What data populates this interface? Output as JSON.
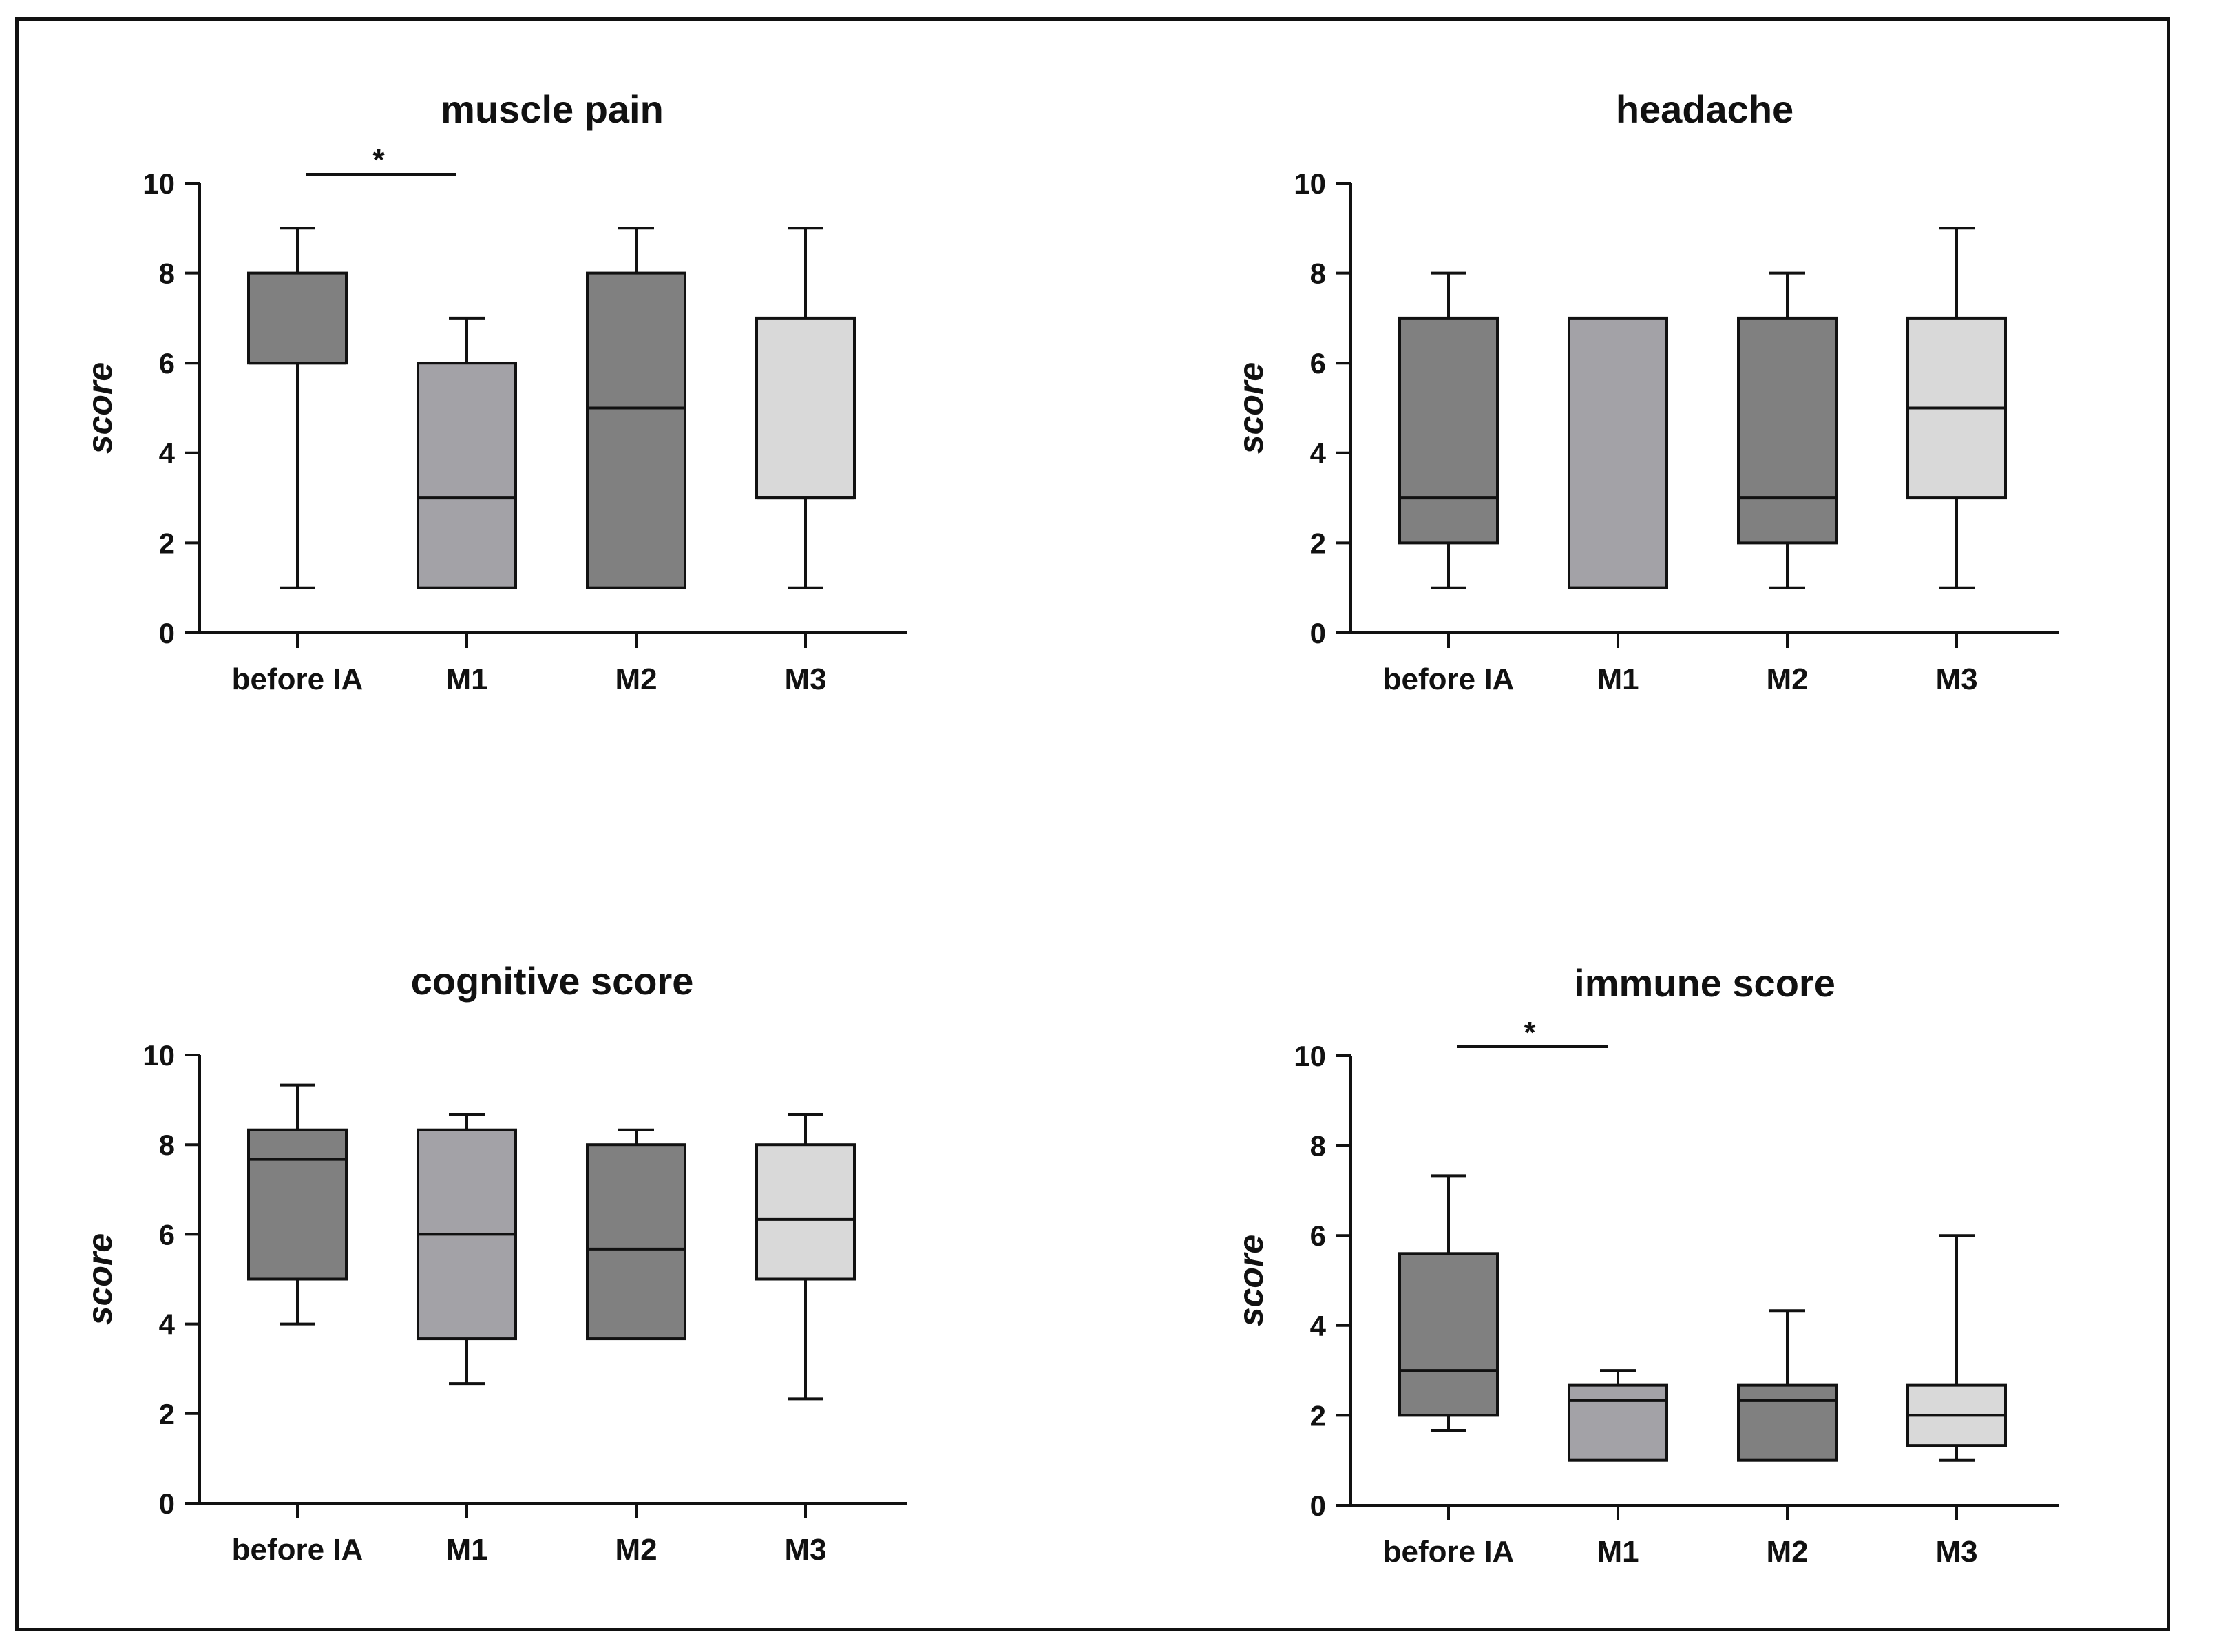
{
  "chart_data": [
    {
      "type": "box",
      "title": "muscle pain",
      "xlabel": "",
      "ylabel": "score",
      "ylim": [
        0,
        10
      ],
      "yticks": [
        0,
        2,
        4,
        6,
        8,
        10
      ],
      "categories": [
        "before IA",
        "M1",
        "M2",
        "M3"
      ],
      "boxes": [
        {
          "min": 1,
          "q1": 6,
          "median": 6,
          "q3": 8,
          "max": 9,
          "color": "#808080"
        },
        {
          "min": 1,
          "q1": 1,
          "median": 3,
          "q3": 6,
          "max": 7,
          "color": "#a3a2a7"
        },
        {
          "min": 1,
          "q1": 1,
          "median": 5,
          "q3": 8,
          "max": 9,
          "color": "#808080"
        },
        {
          "min": 1,
          "q1": 3,
          "median": 3,
          "q3": 7,
          "max": 9,
          "color": "#d9d9d9"
        }
      ],
      "significance": {
        "from": 0,
        "to": 1,
        "label": "*"
      }
    },
    {
      "type": "box",
      "title": "headache",
      "xlabel": "",
      "ylabel": "score",
      "ylim": [
        0,
        10
      ],
      "yticks": [
        0,
        2,
        4,
        6,
        8,
        10
      ],
      "categories": [
        "before IA",
        "M1",
        "M2",
        "M3"
      ],
      "boxes": [
        {
          "min": 1,
          "q1": 2,
          "median": 3,
          "q3": 7,
          "max": 8,
          "color": "#808080"
        },
        {
          "min": 1,
          "q1": 1,
          "median": 1,
          "q3": 7,
          "max": 7,
          "color": "#a3a2a7"
        },
        {
          "min": 1,
          "q1": 2,
          "median": 3,
          "q3": 7,
          "max": 8,
          "color": "#808080"
        },
        {
          "min": 1,
          "q1": 3,
          "median": 5,
          "q3": 7,
          "max": 9,
          "color": "#d9d9d9"
        }
      ]
    },
    {
      "type": "box",
      "title": "cognitive score",
      "xlabel": "",
      "ylabel": "score",
      "ylim": [
        0,
        10
      ],
      "yticks": [
        0,
        2,
        4,
        6,
        8,
        10
      ],
      "categories": [
        "before IA",
        "M1",
        "M2",
        "M3"
      ],
      "boxes": [
        {
          "min": 4,
          "q1": 5,
          "median": 7.67,
          "q3": 8.33,
          "max": 9.33,
          "color": "#808080"
        },
        {
          "min": 2.67,
          "q1": 3.67,
          "median": 6,
          "q3": 8.33,
          "max": 8.67,
          "color": "#a3a2a7"
        },
        {
          "min": 3.67,
          "q1": 3.67,
          "median": 5.67,
          "q3": 8,
          "max": 8.33,
          "color": "#808080"
        },
        {
          "min": 2.33,
          "q1": 5,
          "median": 6.33,
          "q3": 8,
          "max": 8.67,
          "color": "#d9d9d9"
        }
      ]
    },
    {
      "type": "box",
      "title": "immune score",
      "xlabel": "",
      "ylabel": "score",
      "ylim": [
        0,
        10
      ],
      "yticks": [
        0,
        2,
        4,
        6,
        8,
        10
      ],
      "categories": [
        "before IA",
        "M1",
        "M2",
        "M3"
      ],
      "boxes": [
        {
          "min": 1.67,
          "q1": 2,
          "median": 3,
          "q3": 5.6,
          "max": 7.33,
          "color": "#808080"
        },
        {
          "min": 1,
          "q1": 1,
          "median": 2.33,
          "q3": 2.67,
          "max": 3,
          "color": "#a3a2a7"
        },
        {
          "min": 1,
          "q1": 1,
          "median": 2.33,
          "q3": 2.67,
          "max": 4.33,
          "color": "#808080"
        },
        {
          "min": 1,
          "q1": 1.33,
          "median": 2,
          "q3": 2.67,
          "max": 6,
          "color": "#d9d9d9"
        }
      ],
      "significance": {
        "from": 0,
        "to": 1,
        "label": "*"
      }
    }
  ]
}
